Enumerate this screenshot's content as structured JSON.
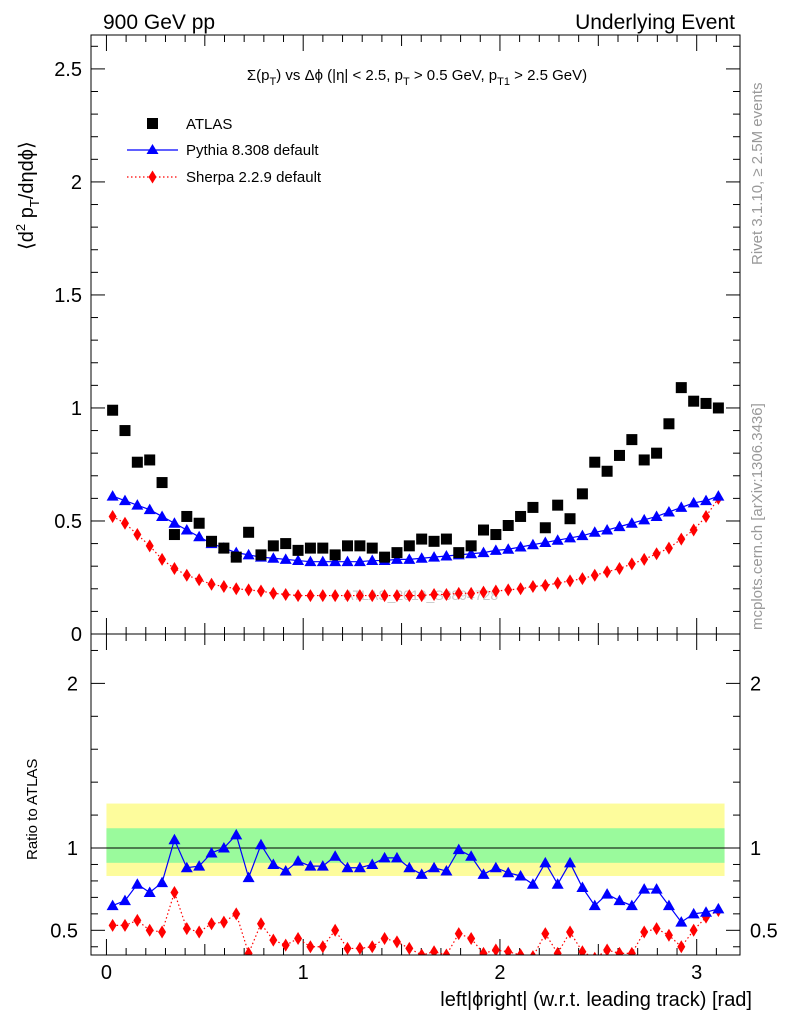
{
  "header": {
    "left": "900 GeV pp",
    "right": "Underlying Event",
    "side_top": "Rivet 3.1.10, ≥ 2.5M events",
    "side_bottom": "mcplots.cern.ch [arXiv:1306.3436]"
  },
  "watermark": "ATLAS_2010_S8894728",
  "chart_data": [
    {
      "type": "scatter",
      "panel": "main",
      "title_parts": {
        "a": "Σ(p",
        "a_sub": "T",
        "b": ") vs Δϕ (|η| < 2.5, p",
        "b_sub": "T",
        "c": " > 0.5 GeV, p",
        "c_sub": "T1",
        "d": " > 2.5 GeV)"
      },
      "ylabel_parts": {
        "a": "⟨d",
        "sup": "2",
        "b": " p",
        "sub": "T",
        "c": "/dηdϕ⟩"
      },
      "xlim": [
        -0.0785,
        3.2201
      ],
      "ylim": [
        0,
        2.65
      ],
      "yticks": [
        0,
        0.5,
        1,
        1.5,
        2,
        2.5
      ],
      "ytick_labels": [
        "0",
        "0.5",
        "1",
        "1.5",
        "2",
        "2.5"
      ],
      "x": [
        0.0314,
        0.0942,
        0.157,
        0.2199,
        0.2827,
        0.3456,
        0.4084,
        0.4712,
        0.5341,
        0.5969,
        0.6597,
        0.7226,
        0.7854,
        0.8482,
        0.9111,
        0.9739,
        1.0367,
        1.0996,
        1.1624,
        1.2252,
        1.2881,
        1.3509,
        1.4137,
        1.4766,
        1.5394,
        1.6022,
        1.6651,
        1.7279,
        1.7907,
        1.8536,
        1.9164,
        1.9792,
        2.0421,
        2.1049,
        2.1677,
        2.2306,
        2.2934,
        2.3562,
        2.4191,
        2.4819,
        2.5447,
        2.6076,
        2.6704,
        2.7332,
        2.7961,
        2.8589,
        2.9217,
        2.9846,
        3.0474,
        3.1102
      ],
      "series": [
        {
          "name": "ATLAS",
          "color": "#000000",
          "marker": "square",
          "values": [
            0.99,
            0.9,
            0.76,
            0.77,
            0.67,
            0.44,
            0.52,
            0.49,
            0.41,
            0.38,
            0.34,
            0.45,
            0.35,
            0.39,
            0.4,
            0.37,
            0.38,
            0.38,
            0.35,
            0.39,
            0.39,
            0.38,
            0.34,
            0.36,
            0.39,
            0.42,
            0.41,
            0.42,
            0.36,
            0.39,
            0.46,
            0.44,
            0.48,
            0.52,
            0.56,
            0.47,
            0.57,
            0.51,
            0.62,
            0.76,
            0.72,
            0.79,
            0.86,
            0.77,
            0.8,
            0.93,
            1.09,
            1.03,
            1.02,
            1.0
          ]
        },
        {
          "name": "Pythia 8.308 default",
          "color": "#0000ff",
          "marker": "triangle",
          "line": "solid",
          "values": [
            0.61,
            0.59,
            0.57,
            0.55,
            0.52,
            0.49,
            0.46,
            0.43,
            0.4,
            0.38,
            0.36,
            0.35,
            0.34,
            0.335,
            0.33,
            0.325,
            0.32,
            0.32,
            0.32,
            0.32,
            0.32,
            0.325,
            0.325,
            0.33,
            0.33,
            0.335,
            0.34,
            0.345,
            0.35,
            0.355,
            0.36,
            0.37,
            0.375,
            0.385,
            0.395,
            0.405,
            0.415,
            0.425,
            0.435,
            0.45,
            0.46,
            0.475,
            0.49,
            0.505,
            0.52,
            0.54,
            0.56,
            0.58,
            0.59,
            0.61
          ]
        },
        {
          "name": "Sherpa 2.2.9 default",
          "color": "#ff0000",
          "marker": "diamond",
          "line": "dotted",
          "values": [
            0.52,
            0.49,
            0.44,
            0.39,
            0.33,
            0.29,
            0.26,
            0.24,
            0.22,
            0.21,
            0.2,
            0.195,
            0.19,
            0.18,
            0.175,
            0.17,
            0.17,
            0.17,
            0.17,
            0.17,
            0.17,
            0.17,
            0.17,
            0.17,
            0.17,
            0.17,
            0.175,
            0.175,
            0.18,
            0.18,
            0.185,
            0.19,
            0.195,
            0.2,
            0.21,
            0.215,
            0.225,
            0.235,
            0.245,
            0.26,
            0.275,
            0.29,
            0.31,
            0.33,
            0.355,
            0.38,
            0.42,
            0.46,
            0.52,
            0.6
          ]
        }
      ],
      "legend_placement": "top-left"
    },
    {
      "type": "line",
      "panel": "ratio",
      "ylabel": "Ratio to ATLAS",
      "xlabel": "left|ϕright| (w.r.t. leading track) [rad]",
      "xlim": [
        -0.0785,
        3.2201
      ],
      "ylim": [
        0.35,
        2.3
      ],
      "xticks": [
        0,
        1,
        2,
        3
      ],
      "xtick_labels": [
        "0",
        "1",
        "2",
        "3"
      ],
      "yticks": [
        0.5,
        1,
        2
      ],
      "ytick_labels": [
        "0.5",
        "1",
        "2"
      ],
      "bands": {
        "yellow": [
          0.83,
          1.27
        ],
        "green": [
          0.91,
          1.12
        ],
        "yellow_color": "#fdfc9c",
        "green_color": "#9afa9c"
      },
      "series": [
        {
          "name": "Pythia 8.308 default",
          "color": "#0000ff",
          "values": [
            0.65,
            0.68,
            0.78,
            0.73,
            0.79,
            1.05,
            0.88,
            0.89,
            0.97,
            1.0,
            1.08,
            0.82,
            1.02,
            0.9,
            0.86,
            0.92,
            0.89,
            0.89,
            0.95,
            0.88,
            0.88,
            0.9,
            0.94,
            0.94,
            0.88,
            0.84,
            0.88,
            0.86,
            0.99,
            0.95,
            0.84,
            0.88,
            0.85,
            0.83,
            0.78,
            0.91,
            0.78,
            0.91,
            0.76,
            0.65,
            0.72,
            0.68,
            0.65,
            0.75,
            0.75,
            0.65,
            0.55,
            0.6,
            0.61,
            0.63
          ]
        },
        {
          "name": "Sherpa 2.2.9 default",
          "color": "#ff0000",
          "values": [
            0.53,
            0.53,
            0.56,
            0.5,
            0.49,
            0.73,
            0.51,
            0.49,
            0.54,
            0.55,
            0.6,
            0.36,
            0.54,
            0.44,
            0.41,
            0.45,
            0.4,
            0.4,
            0.5,
            0.39,
            0.39,
            0.4,
            0.45,
            0.43,
            0.39,
            0.35,
            0.37,
            0.35,
            0.48,
            0.45,
            0.36,
            0.38,
            0.37,
            0.35,
            0.34,
            0.48,
            0.36,
            0.49,
            0.37,
            0.33,
            0.38,
            0.36,
            0.36,
            0.49,
            0.51,
            0.47,
            0.4,
            0.5,
            0.58,
            0.62
          ]
        }
      ]
    }
  ]
}
